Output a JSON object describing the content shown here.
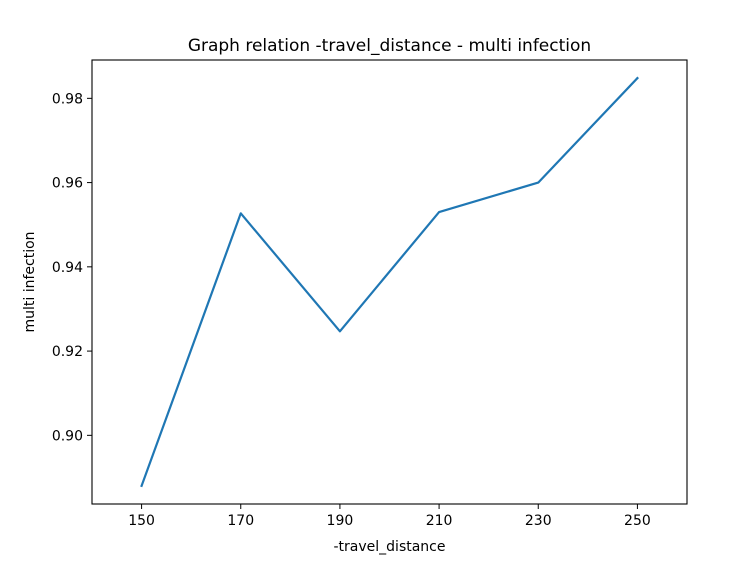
{
  "chart_data": {
    "type": "line",
    "title": "Graph relation -travel_distance - multi infection",
    "xlabel": "-travel_distance",
    "ylabel": "multi infection",
    "x": [
      150,
      170,
      190,
      210,
      230,
      250
    ],
    "series": [
      {
        "values": [
          0.888,
          0.9527,
          0.9247,
          0.953,
          0.96,
          0.9848
        ],
        "color": "#1f77b4"
      }
    ],
    "xticks": [
      150,
      170,
      190,
      210,
      230,
      250
    ],
    "xtick_labels": [
      "150",
      "170",
      "190",
      "210",
      "230",
      "250"
    ],
    "yticks": [
      0.9,
      0.92,
      0.94,
      0.96,
      0.98
    ],
    "ytick_labels": [
      "0.90",
      "0.92",
      "0.94",
      "0.96",
      "0.98"
    ],
    "xlim": [
      140,
      260
    ],
    "ylim": [
      0.8837,
      0.9891
    ],
    "grid": false,
    "legend": "none"
  }
}
